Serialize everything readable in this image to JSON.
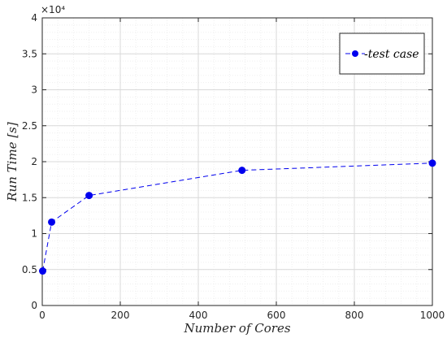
{
  "chart_data": {
    "type": "line",
    "xlabel": "Number of Cores",
    "ylabel": "Run Time [s]",
    "xlim": [
      0,
      1000
    ],
    "ylim": [
      0,
      40000
    ],
    "y_exponent_label": "×10⁴",
    "xticks": [
      0,
      200,
      400,
      600,
      800,
      1000
    ],
    "yticks": [
      0,
      5000,
      10000,
      15000,
      20000,
      25000,
      30000,
      35000,
      40000
    ],
    "ytick_labels": [
      "0",
      "0.5",
      "1",
      "1.5",
      "2",
      "2.5",
      "3",
      "3.5",
      "4"
    ],
    "grid": true,
    "minor_grid": true,
    "legend_position": "top-right",
    "series": [
      {
        "name": "test case",
        "color": "#0000ee",
        "line_style": "dashed",
        "marker": "circle",
        "x": [
          1,
          24,
          120,
          512,
          1000
        ],
        "y": [
          4800,
          11600,
          15300,
          18800,
          19800
        ]
      }
    ]
  }
}
